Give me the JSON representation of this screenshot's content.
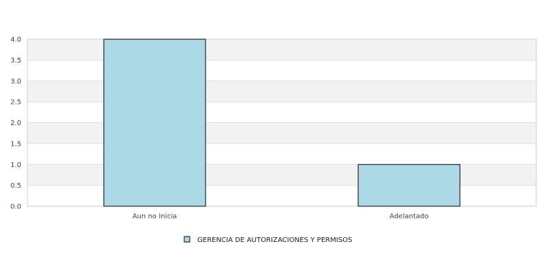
{
  "chart_data": {
    "type": "bar",
    "categories": [
      "Aun no Inicia",
      "Adelantado"
    ],
    "series": [
      {
        "name": "GERENCIA DE AUTORIZACIONES Y PERMISOS",
        "values": [
          4,
          1
        ]
      }
    ],
    "y_ticks": [
      "0.0",
      "0.5",
      "1.0",
      "1.5",
      "2.0",
      "2.5",
      "3.0",
      "3.5",
      "4.0"
    ],
    "ylim": [
      0,
      4
    ],
    "grid": "horizontal alternating bands",
    "legend_position": "bottom",
    "colors": {
      "bar_fill": "#add8e6",
      "bar_stroke": "#000000",
      "band": "#f3f3f3",
      "grid_line": "#dddddd",
      "frame": "#cccccc"
    }
  }
}
